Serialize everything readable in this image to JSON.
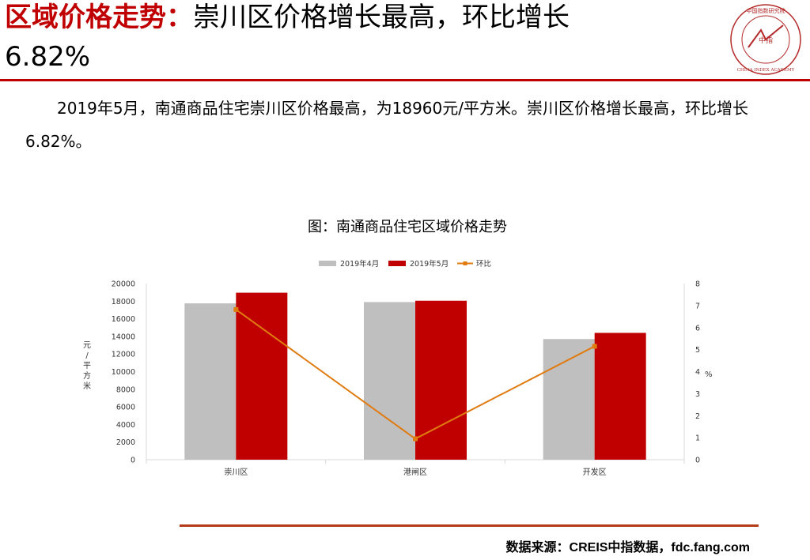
{
  "header": {
    "title_bold": "区域价格走势：",
    "title_rest": "崇川区价格增长最高，环比增长",
    "title_line2": "6.82%"
  },
  "logo": {
    "top_text": "中国指数研究院",
    "bottom_text": "CHINA INDEX ACADEMY",
    "center_text": "中指"
  },
  "paragraph": "2019年5月，南通商品住宅崇川区价格最高，为18960元/平方米。崇川区价格增长最高，环比增长6.82%。",
  "source": "数据来源：CREIS中指数据，fdc.fang.com",
  "colors": {
    "accent": "#c00000",
    "series_apr": "#bfbfbf",
    "series_may": "#c00000",
    "line": "#e07b10"
  },
  "chart_data": {
    "type": "bar",
    "title": "图：南通商品住宅区域价格走势",
    "categories": [
      "崇川区",
      "港闸区",
      "开发区"
    ],
    "series": [
      {
        "name": "2019年4月",
        "type": "bar",
        "axis": "left",
        "values": [
          17750,
          17900,
          13700
        ]
      },
      {
        "name": "2019年5月",
        "type": "bar",
        "axis": "left",
        "values": [
          18960,
          18050,
          14400
        ]
      },
      {
        "name": "环比",
        "type": "line",
        "axis": "right",
        "values": [
          6.82,
          0.95,
          5.15
        ]
      }
    ],
    "ylabel": "元/平方米",
    "y2label": "%",
    "ylim": [
      0,
      20000
    ],
    "y2lim": [
      0,
      8
    ],
    "yticks": [
      0,
      2000,
      4000,
      6000,
      8000,
      10000,
      12000,
      14000,
      16000,
      18000,
      20000
    ],
    "y2ticks": [
      0,
      1,
      2,
      3,
      4,
      5,
      6,
      7,
      8
    ],
    "legend": "top",
    "grid": false
  }
}
